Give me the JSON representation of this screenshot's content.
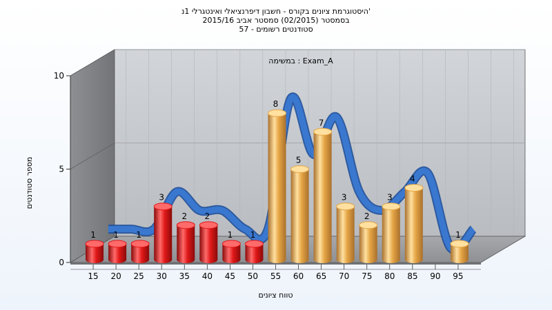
{
  "titles": {
    "line1": "היסטוגרמת ציונים בקורס - חשבון דיפרנציאלי ואינטגרלי 1נ'",
    "line2": "בסמסטר  (02/2015)  סמסטר אביב 2015/16",
    "line3": "סטודנטים רשומים - 57"
  },
  "chart_data": {
    "type": "bar",
    "annotation": "במשימה : Exam_A",
    "xlabel": "טווח ציונים",
    "ylabel": "מספר סטודנטים",
    "ylim": [
      0,
      10
    ],
    "yticks": [
      "0",
      "5",
      "10"
    ],
    "categories": [
      "15",
      "20",
      "25",
      "30",
      "35",
      "40",
      "45",
      "50",
      "55",
      "60",
      "65",
      "70",
      "75",
      "80",
      "85",
      "90",
      "95"
    ],
    "values": [
      1,
      1,
      1,
      3,
      2,
      2,
      1,
      1,
      8,
      5,
      7,
      3,
      2,
      3,
      4,
      null,
      1
    ],
    "bar_groups": [
      {
        "indices": [
          0,
          1,
          2,
          3,
          4,
          5,
          6,
          7
        ],
        "color": "#e01818"
      },
      {
        "indices": [
          8,
          9,
          10,
          11,
          12,
          13,
          14,
          16
        ],
        "color": "#e5a545"
      }
    ],
    "smoothed_line_color": "#3a78d0"
  }
}
